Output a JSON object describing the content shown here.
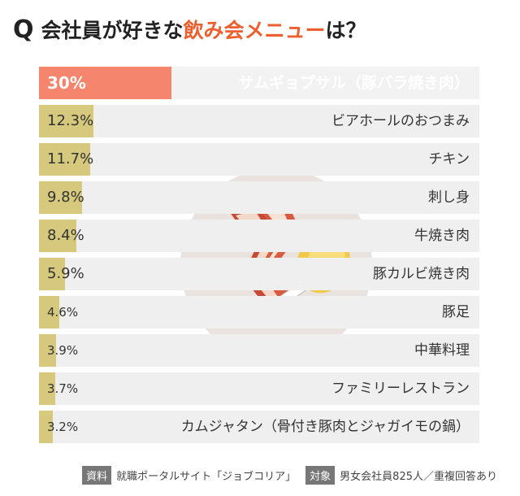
{
  "title": {
    "q": "Q",
    "pre": "会社員が好きな",
    "highlight": "飲み会メニュー",
    "post": "は？"
  },
  "chart_data": {
    "type": "bar",
    "orientation": "horizontal",
    "unit": "%",
    "xlim": [
      0,
      100
    ],
    "categories": [
      "サムギョプサル（豚バラ焼き肉）",
      "ビアホールのおつまみ",
      "チキン",
      "刺し身",
      "牛焼き肉",
      "豚カルビ焼き肉",
      "豚足",
      "中華料理",
      "ファミリーレストラン",
      "カムジャタン（骨付き豚肉とジャガイモの鍋）"
    ],
    "labels": [
      "30%",
      "12.3%",
      "11.7%",
      "9.8%",
      "8.4%",
      "5.9%",
      "4.6%",
      "3.9%",
      "3.7%",
      "3.2%"
    ],
    "values": [
      30,
      12.3,
      11.7,
      9.8,
      8.4,
      5.9,
      4.6,
      3.9,
      3.7,
      3.2
    ]
  },
  "footer": {
    "source_tag": "資料",
    "source_text": "就職ポータルサイト「ジョブコリア」",
    "target_tag": "対象",
    "target_text": "男女会社員825人／重複回答あり"
  },
  "colors": {
    "highlight": "#ec5f2e",
    "top_bar": "#f5856d",
    "bar": "#d6c97e",
    "track": "#efefef"
  },
  "illustration": "bacon-and-chicken-drumstick-icon"
}
